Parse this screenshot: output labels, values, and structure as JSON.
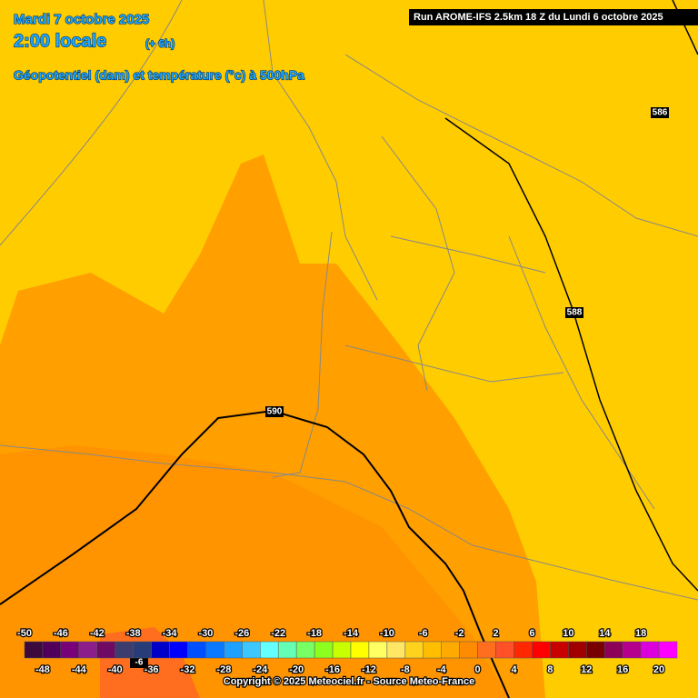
{
  "header": {
    "date": "Mardi 7 octobre 2025",
    "time": "2:00 locale",
    "lead": "(+ 6h)",
    "parameter": "Géopotentiel (dam) et température (°c) à 500hPa"
  },
  "run_info": "Run AROME-IFS 2.5km 18 Z du Lundi 6 octobre 2025",
  "map_labels": [
    "586",
    "588",
    "590",
    "-6"
  ],
  "scale": {
    "labels": [
      -50,
      -48,
      -46,
      -44,
      -42,
      -40,
      -38,
      -36,
      -34,
      -32,
      -30,
      -28,
      -26,
      -24,
      -22,
      -20,
      -18,
      -16,
      -14,
      -12,
      -10,
      -8,
      -6,
      -4,
      -2,
      0,
      2,
      4,
      6,
      8,
      10,
      12,
      14,
      16,
      18,
      20
    ],
    "colors": [
      "#3c0a3c",
      "#50005a",
      "#780078",
      "#8c1e8c",
      "#6e0a64",
      "#3c3c6e",
      "#283c78",
      "#0000c8",
      "#0000ff",
      "#0050ff",
      "#0a78ff",
      "#1ea0ff",
      "#3cc8ff",
      "#64ffff",
      "#64ffb4",
      "#78ff64",
      "#8cff1e",
      "#c8ff00",
      "#ffff00",
      "#ffff64",
      "#ffe664",
      "#ffd21e",
      "#ffbe00",
      "#ffaa00",
      "#ff8c00",
      "#ff6e1e",
      "#ff5028",
      "#ff2800",
      "#ff0000",
      "#c80000",
      "#a00000",
      "#780000",
      "#8c005a",
      "#b4008c",
      "#dc00dc",
      "#ff00ff"
    ]
  },
  "copyright": "Copyright © 2025 Meteociel.fr - Source Meteo-France"
}
